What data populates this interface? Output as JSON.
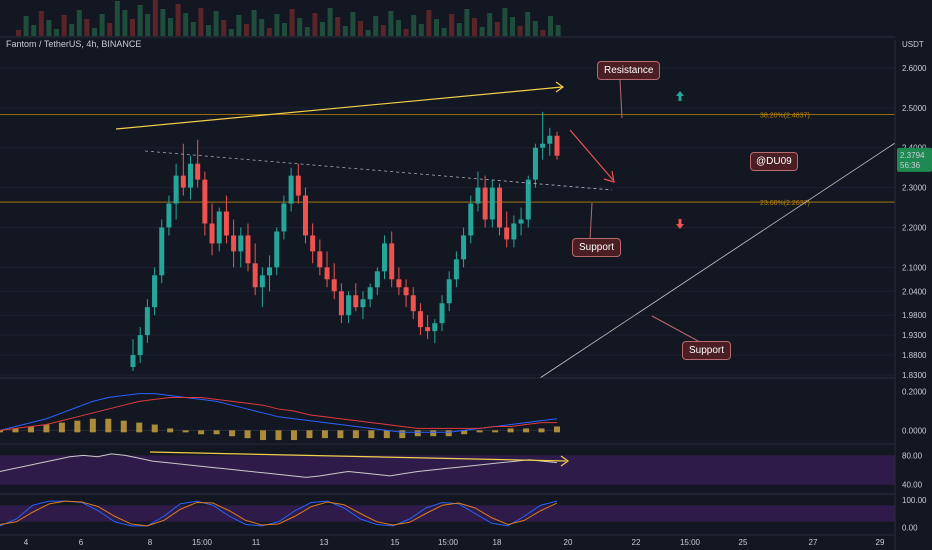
{
  "header": {
    "symbol": "Fantom / TetherUS, 4h, BINANCE",
    "currency": "USDT"
  },
  "watermark": "@DU09",
  "annotations": {
    "resistance": "Resistance",
    "support_1": "Support",
    "support_2": "Support"
  },
  "price_badge": {
    "price": "2.3794",
    "countdown": "56:36"
  },
  "fib_levels": [
    {
      "label": "38.20%(2.4837)",
      "value": 2.4837
    },
    {
      "label": "23.60%(2.2637)",
      "value": 2.2637
    }
  ],
  "colors": {
    "up": "#26a69a",
    "down": "#ef5350",
    "background": "#131722",
    "fib": "#b8860b",
    "trendline": "#f2d04b",
    "macd_line": "#2962ff",
    "signal_line": "#e03b3b",
    "histogram": "#c8a040",
    "rsi": "#c9c9c9",
    "stoch_k": "#2962ff",
    "stoch_d": "#e07b1a",
    "band": "#3a1e5a"
  },
  "chart_data": [
    {
      "type": "candlestick",
      "title": "Fantom / TetherUS, 4h, BINANCE",
      "ylim": [
        1.83,
        2.62
      ],
      "y_ticks": [
        "2.6000",
        "2.5000",
        "2.4000",
        "2.3000",
        "2.2000",
        "2.1000",
        "2.0400",
        "1.9800",
        "1.9300",
        "1.8800",
        "1.8300"
      ],
      "x_ticks": [
        "4",
        "6",
        "8",
        "15:00",
        "11",
        "13",
        "15",
        "15:00",
        "18",
        "20",
        "22",
        "15:00",
        "25",
        "27",
        "29"
      ],
      "last_price": 2.3794,
      "candles": [
        [
          1.85,
          1.92,
          1.84,
          1.88
        ],
        [
          1.88,
          1.95,
          1.86,
          1.93
        ],
        [
          1.93,
          2.02,
          1.91,
          2.0
        ],
        [
          2.0,
          2.1,
          1.98,
          2.08
        ],
        [
          2.08,
          2.22,
          2.06,
          2.2
        ],
        [
          2.2,
          2.28,
          2.18,
          2.26
        ],
        [
          2.26,
          2.36,
          2.22,
          2.33
        ],
        [
          2.33,
          2.41,
          2.28,
          2.3
        ],
        [
          2.3,
          2.38,
          2.27,
          2.36
        ],
        [
          2.36,
          2.42,
          2.3,
          2.32
        ],
        [
          2.32,
          2.34,
          2.18,
          2.21
        ],
        [
          2.21,
          2.26,
          2.13,
          2.16
        ],
        [
          2.16,
          2.25,
          2.14,
          2.24
        ],
        [
          2.24,
          2.28,
          2.16,
          2.18
        ],
        [
          2.18,
          2.22,
          2.1,
          2.14
        ],
        [
          2.14,
          2.2,
          2.1,
          2.18
        ],
        [
          2.18,
          2.21,
          2.09,
          2.11
        ],
        [
          2.11,
          2.16,
          2.03,
          2.05
        ],
        [
          2.05,
          2.1,
          2.0,
          2.08
        ],
        [
          2.08,
          2.13,
          2.04,
          2.1
        ],
        [
          2.1,
          2.2,
          2.08,
          2.19
        ],
        [
          2.19,
          2.28,
          2.17,
          2.26
        ],
        [
          2.26,
          2.35,
          2.24,
          2.33
        ],
        [
          2.33,
          2.36,
          2.26,
          2.28
        ],
        [
          2.28,
          2.3,
          2.16,
          2.18
        ],
        [
          2.18,
          2.21,
          2.11,
          2.14
        ],
        [
          2.14,
          2.17,
          2.08,
          2.1
        ],
        [
          2.1,
          2.14,
          2.05,
          2.07
        ],
        [
          2.07,
          2.11,
          2.02,
          2.04
        ],
        [
          2.04,
          2.06,
          1.96,
          1.98
        ],
        [
          1.98,
          2.04,
          1.96,
          2.03
        ],
        [
          2.03,
          2.06,
          1.99,
          2.0
        ],
        [
          2.0,
          2.04,
          1.97,
          2.02
        ],
        [
          2.02,
          2.06,
          2.0,
          2.05
        ],
        [
          2.05,
          2.1,
          2.03,
          2.09
        ],
        [
          2.09,
          2.18,
          2.07,
          2.16
        ],
        [
          2.16,
          2.19,
          2.05,
          2.07
        ],
        [
          2.07,
          2.1,
          2.03,
          2.05
        ],
        [
          2.05,
          2.07,
          2.0,
          2.03
        ],
        [
          2.03,
          2.05,
          1.97,
          1.99
        ],
        [
          1.99,
          2.01,
          1.93,
          1.95
        ],
        [
          1.95,
          1.98,
          1.92,
          1.94
        ],
        [
          1.94,
          1.97,
          1.91,
          1.96
        ],
        [
          1.96,
          2.03,
          1.94,
          2.01
        ],
        [
          2.01,
          2.09,
          1.99,
          2.07
        ],
        [
          2.07,
          2.14,
          2.05,
          2.12
        ],
        [
          2.12,
          2.2,
          2.1,
          2.18
        ],
        [
          2.18,
          2.28,
          2.16,
          2.26
        ],
        [
          2.26,
          2.34,
          2.24,
          2.3
        ],
        [
          2.3,
          2.33,
          2.2,
          2.22
        ],
        [
          2.22,
          2.32,
          2.2,
          2.3
        ],
        [
          2.3,
          2.31,
          2.18,
          2.2
        ],
        [
          2.2,
          2.24,
          2.15,
          2.17
        ],
        [
          2.17,
          2.23,
          2.15,
          2.21
        ],
        [
          2.21,
          2.25,
          2.18,
          2.22
        ],
        [
          2.22,
          2.33,
          2.2,
          2.32
        ],
        [
          2.32,
          2.41,
          2.3,
          2.4
        ],
        [
          2.4,
          2.49,
          2.37,
          2.41
        ],
        [
          2.41,
          2.45,
          2.38,
          2.43
        ],
        [
          2.43,
          2.44,
          2.37,
          2.38
        ]
      ]
    },
    {
      "type": "line",
      "name": "MACD",
      "ylim": [
        -0.05,
        0.25
      ],
      "y_ticks": [
        "0.2000",
        "0.0000"
      ],
      "macd": [
        0.0,
        0.02,
        0.04,
        0.06,
        0.09,
        0.12,
        0.15,
        0.17,
        0.18,
        0.19,
        0.19,
        0.18,
        0.17,
        0.16,
        0.15,
        0.13,
        0.11,
        0.09,
        0.07,
        0.06,
        0.05,
        0.04,
        0.03,
        0.02,
        0.01,
        0.0,
        -0.01,
        -0.01,
        -0.01,
        -0.01,
        0.0,
        0.01,
        0.02,
        0.03,
        0.04,
        0.05,
        0.06
      ],
      "signal": [
        0.0,
        0.01,
        0.02,
        0.03,
        0.05,
        0.07,
        0.09,
        0.11,
        0.13,
        0.15,
        0.16,
        0.17,
        0.17,
        0.17,
        0.16,
        0.15,
        0.14,
        0.13,
        0.11,
        0.1,
        0.08,
        0.07,
        0.06,
        0.05,
        0.04,
        0.03,
        0.02,
        0.01,
        0.01,
        0.01,
        0.01,
        0.01,
        0.02,
        0.02,
        0.03,
        0.04,
        0.04
      ]
    },
    {
      "type": "line",
      "name": "RSI",
      "ylim": [
        30,
        90
      ],
      "y_ticks": [
        "80.00",
        "40.00"
      ],
      "values": [
        58,
        62,
        66,
        70,
        74,
        78,
        80,
        78,
        82,
        80,
        76,
        72,
        70,
        68,
        66,
        64,
        62,
        60,
        58,
        56,
        54,
        52,
        50,
        52,
        55,
        58,
        56,
        54,
        52,
        55,
        58,
        60,
        62,
        64,
        66,
        68,
        70,
        72,
        74,
        72,
        70
      ]
    },
    {
      "type": "line",
      "name": "Stoch RSI",
      "ylim": [
        -10,
        110
      ],
      "y_ticks": [
        "100.00",
        "0.00"
      ],
      "k": [
        5,
        30,
        80,
        95,
        95,
        90,
        60,
        20,
        5,
        5,
        40,
        85,
        95,
        80,
        40,
        10,
        5,
        20,
        60,
        90,
        95,
        70,
        30,
        10,
        5,
        30,
        70,
        90,
        85,
        50,
        15,
        5,
        40,
        80,
        95
      ],
      "d": [
        10,
        20,
        55,
        85,
        95,
        92,
        75,
        40,
        12,
        5,
        25,
        65,
        90,
        88,
        60,
        25,
        8,
        12,
        40,
        75,
        92,
        82,
        50,
        20,
        8,
        18,
        50,
        80,
        88,
        70,
        35,
        10,
        25,
        60,
        88
      ]
    }
  ]
}
